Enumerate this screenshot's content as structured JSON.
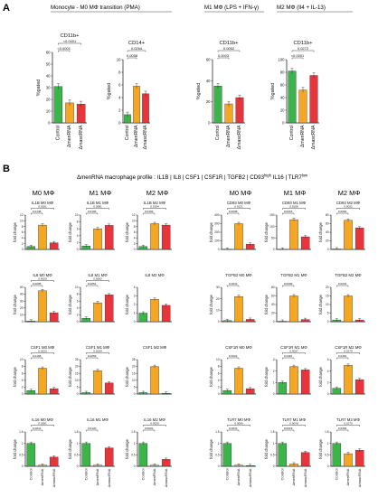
{
  "panel_labels": {
    "A": "A",
    "B": "B"
  },
  "section_a": {
    "group_titles": [
      "Monocyte - M0 MΦ transition (PMA)",
      "M1 MΦ (LPS + IFN-γ)",
      "M2 MΦ (Il4 + IL-13)"
    ]
  },
  "section_b": {
    "profile_title": "ΔmenRNA macrophage profile : IL1B | IL8 | CSF1 | CSF1R | TGFB2 | CD93",
    "profile_high_sup": "high",
    "profile_title_2": " IL16 | TLR7",
    "profile_low_sup": "low",
    "column_titles": [
      "M0 MΦ",
      "M1 MΦ",
      "M2 MΦ",
      "M0 MΦ",
      "M1 MΦ",
      "M2 MΦ"
    ]
  },
  "colors": {
    "control": "#3bb54a",
    "dmenRNA": "#f5a623",
    "dmascRNA": "#e8343b"
  },
  "chart_data": [
    {
      "type": "bar",
      "title": "CD11b+",
      "categories": [
        "Control",
        "ΔmenRNA",
        "ΔmascRNA"
      ],
      "values": [
        31,
        17,
        16
      ],
      "ylabel": "%gated",
      "ylim": [
        0,
        60
      ],
      "yticks": [
        0,
        10,
        20,
        30,
        40,
        50,
        60
      ],
      "brackets": [
        {
          "from": 0,
          "to": 1,
          "label": "<0.0001"
        },
        {
          "from": 0,
          "to": 2,
          "label": "<0.0001"
        }
      ]
    },
    {
      "type": "bar",
      "title": "CD14+",
      "categories": [
        "Control",
        "ΔmenRNA",
        "ΔmascRNA"
      ],
      "values": [
        1.3,
        5.8,
        4.6
      ],
      "ylabel": "%gated",
      "ylim": [
        0,
        10
      ],
      "yticks": [
        0,
        2,
        4,
        6,
        8,
        10
      ],
      "brackets": [
        {
          "from": 0,
          "to": 1,
          "label": "0.0058"
        },
        {
          "from": 0,
          "to": 2,
          "label": "0.0264"
        }
      ]
    },
    {
      "type": "bar",
      "title": "CD11b+",
      "categories": [
        "Control",
        "ΔmenRNA",
        "ΔmascRNA"
      ],
      "values": [
        35,
        18,
        24
      ],
      "ylabel": "%gated",
      "ylim": [
        0,
        60
      ],
      "yticks": [
        0,
        20,
        40,
        60
      ],
      "brackets": [
        {
          "from": 0,
          "to": 1,
          "label": "0.0003"
        },
        {
          "from": 0,
          "to": 2,
          "label": "0.0052"
        }
      ]
    },
    {
      "type": "bar",
      "title": "CD11b+",
      "categories": [
        "Control",
        "ΔmenRNA",
        "ΔmascRNA"
      ],
      "values": [
        82,
        52,
        75
      ],
      "ylabel": "%gated",
      "ylim": [
        0,
        100
      ],
      "yticks": [
        0,
        20,
        40,
        60,
        80,
        100
      ],
      "brackets": [
        {
          "from": 0,
          "to": 1,
          "label": "<0.0001"
        },
        {
          "from": 0,
          "to": 2,
          "label": "0.0272"
        }
      ]
    },
    {
      "type": "bar",
      "title": "IL1B M0 MΦ",
      "categories": [
        "Control",
        "ΔmenRNA",
        "ΔmascRNA"
      ],
      "values": [
        1,
        8.5,
        2.3
      ],
      "ylabel": "fold change",
      "ylim": [
        0,
        12
      ],
      "yticks": [
        0,
        2,
        4,
        6,
        8,
        10,
        12
      ],
      "brackets": [
        {
          "from": 0,
          "to": 1,
          "label": "0.0148"
        },
        {
          "from": 0,
          "to": 2,
          "label": "0.0261"
        }
      ]
    },
    {
      "type": "bar",
      "title": "IL1B M1 MΦ",
      "categories": [
        "Control",
        "ΔmenRNA",
        "ΔmascRNA"
      ],
      "values": [
        1,
        6,
        7
      ],
      "ylabel": "fold change",
      "ylim": [
        0,
        10
      ],
      "yticks": [
        0,
        2,
        4,
        6,
        8,
        10
      ],
      "brackets": [
        {
          "from": 0,
          "to": 1,
          "label": "0.0196"
        },
        {
          "from": 0,
          "to": 2,
          "label": "0.0081"
        }
      ]
    },
    {
      "type": "bar",
      "title": "IL1B M2 MΦ",
      "categories": [
        "Control",
        "ΔmenRNA",
        "ΔmascRNA"
      ],
      "values": [
        1,
        9,
        8.5
      ],
      "ylabel": "fold change",
      "ylim": [
        0,
        12
      ],
      "yticks": [
        0,
        2,
        4,
        6,
        8,
        10,
        12
      ],
      "brackets": [
        {
          "from": 0,
          "to": 1,
          "label": "0.0162"
        },
        {
          "from": 0,
          "to": 2,
          "label": "0.0154"
        }
      ]
    },
    {
      "type": "bar",
      "title": "CD93 M0 MΦ",
      "categories": [
        "Control",
        "ΔmenRNA",
        "ΔmascRNA"
      ],
      "values": [
        1,
        300,
        60
      ],
      "ylabel": "fold change",
      "ylim": [
        0,
        400
      ],
      "yticks": [
        0,
        100,
        200,
        300,
        400
      ],
      "brackets": [
        {
          "from": 0,
          "to": 1,
          "label": "0.0038"
        },
        {
          "from": 0,
          "to": 2,
          "label": "0.0121"
        }
      ]
    },
    {
      "type": "bar",
      "title": "CD93 M1 MΦ",
      "categories": [
        "Control",
        "ΔmenRNA",
        "ΔmascRNA"
      ],
      "values": [
        1,
        130,
        55
      ],
      "ylabel": "fold change",
      "ylim": [
        0,
        150
      ],
      "yticks": [
        0,
        50,
        100,
        150
      ],
      "brackets": [
        {
          "from": 0,
          "to": 1,
          "label": "0.0015"
        },
        {
          "from": 0,
          "to": 2,
          "label": "0.0106"
        }
      ]
    },
    {
      "type": "bar",
      "title": "CD93 M2 MΦ",
      "categories": [
        "Control",
        "ΔmenRNA",
        "ΔmascRNA"
      ],
      "values": [
        1,
        68,
        50
      ],
      "ylabel": "fold change",
      "ylim": [
        0,
        80
      ],
      "yticks": [
        0,
        20,
        40,
        60,
        80
      ],
      "brackets": [
        {
          "from": 0,
          "to": 1,
          "label": "0.0054"
        },
        {
          "from": 0,
          "to": 2,
          "label": "0.0032"
        }
      ]
    },
    {
      "type": "bar",
      "title": "IL8 M0 MΦ",
      "categories": [
        "Control",
        "ΔmenRNA",
        "ΔmascRNA"
      ],
      "values": [
        1,
        45,
        13
      ],
      "ylabel": "fold change",
      "ylim": [
        0,
        50
      ],
      "yticks": [
        0,
        10,
        20,
        30,
        40,
        50
      ],
      "brackets": [
        {
          "from": 0,
          "to": 1,
          "label": "0.0005"
        },
        {
          "from": 0,
          "to": 2,
          "label": "0.0020"
        }
      ]
    },
    {
      "type": "bar",
      "title": "IL8 M1 MΦ",
      "categories": [
        "Control",
        "ΔmenRNA",
        "ΔmascRNA"
      ],
      "values": [
        1,
        5.5,
        7.8
      ],
      "ylabel": "fold change",
      "ylim": [
        0,
        10
      ],
      "yticks": [
        0,
        2,
        4,
        6,
        8,
        10
      ],
      "brackets": [
        {
          "from": 0,
          "to": 1,
          "label": "0.0051"
        },
        {
          "from": 0,
          "to": 2,
          "label": "0.0062"
        }
      ]
    },
    {
      "type": "bar",
      "title": "IL8 M2 MΦ",
      "categories": [
        "Control",
        "ΔmenRNA",
        "ΔmascRNA"
      ],
      "values": [
        1,
        2.6,
        1.9
      ],
      "ylabel": "fold change",
      "ylim": [
        0,
        4
      ],
      "yticks": [
        0,
        1,
        2,
        3,
        4
      ],
      "brackets": []
    },
    {
      "type": "bar",
      "title": "TGFB2 M0 MΦ",
      "categories": [
        "Control",
        "ΔmenRNA",
        "ΔmascRNA"
      ],
      "values": [
        1,
        22,
        2
      ],
      "ylabel": "fold change",
      "ylim": [
        0,
        30
      ],
      "yticks": [
        0,
        10,
        20,
        30
      ],
      "brackets": [
        {
          "from": 0,
          "to": 1,
          "label": "0.0011"
        }
      ]
    },
    {
      "type": "bar",
      "title": "TGFB2 M1 MΦ",
      "categories": [
        "Control",
        "ΔmenRNA",
        "ΔmascRNA"
      ],
      "values": [
        1,
        60,
        5
      ],
      "ylabel": "fold change",
      "ylim": [
        0,
        80
      ],
      "yticks": [
        0,
        20,
        40,
        60,
        80
      ],
      "brackets": [
        {
          "from": 0,
          "to": 1,
          "label": "0.0009"
        }
      ]
    },
    {
      "type": "bar",
      "title": "TGFB2 M2 MΦ",
      "categories": [
        "Control",
        "ΔmenRNA",
        "ΔmascRNA"
      ],
      "values": [
        1,
        15,
        1
      ],
      "ylabel": "fold change",
      "ylim": [
        0,
        20
      ],
      "yticks": [
        0,
        5,
        10,
        15,
        20
      ],
      "brackets": [
        {
          "from": 0,
          "to": 1,
          "label": "0.0231"
        }
      ]
    },
    {
      "type": "bar",
      "title": "CSF1 M0 MΦ",
      "categories": [
        "Control",
        "ΔmenRNA",
        "ΔmascRNA"
      ],
      "values": [
        1,
        7.5,
        1.5
      ],
      "ylabel": "fold change",
      "ylim": [
        0,
        10
      ],
      "yticks": [
        0,
        2,
        4,
        6,
        8,
        10
      ],
      "brackets": [
        {
          "from": 0,
          "to": 1,
          "label": "0.0108"
        },
        {
          "from": 0,
          "to": 2,
          "label": "0.0123"
        }
      ]
    },
    {
      "type": "bar",
      "title": "CSF1 M1 MΦ",
      "categories": [
        "Control",
        "ΔmenRNA",
        "ΔmascRNA"
      ],
      "values": [
        1,
        17,
        8
      ],
      "ylabel": "fold change",
      "ylim": [
        0,
        25
      ],
      "yticks": [
        0,
        5,
        10,
        15,
        20,
        25
      ],
      "brackets": [
        {
          "from": 0,
          "to": 1,
          "label": "0.0059"
        },
        {
          "from": 0,
          "to": 2,
          "label": "0.0194"
        }
      ]
    },
    {
      "type": "bar",
      "title": "CSF1 M2 MΦ",
      "categories": [
        "Control",
        "ΔmenRNA",
        "ΔmascRNA"
      ],
      "values": [
        1,
        20,
        0.5
      ],
      "ylabel": "fold change",
      "ylim": [
        0,
        25
      ],
      "yticks": [
        0,
        5,
        10,
        15,
        20,
        25
      ],
      "brackets": []
    },
    {
      "type": "bar",
      "title": "CSF1R M0 MΦ",
      "categories": [
        "Control",
        "ΔmenRNA",
        "ΔmascRNA"
      ],
      "values": [
        1,
        7.5,
        1.5
      ],
      "ylabel": "fold change",
      "ylim": [
        0,
        10
      ],
      "yticks": [
        0,
        2,
        4,
        6,
        8,
        10
      ],
      "brackets": [
        {
          "from": 0,
          "to": 1,
          "label": "0.0022"
        }
      ]
    },
    {
      "type": "bar",
      "title": "CSF1R M1 MΦ",
      "categories": [
        "Control",
        "ΔmenRNA",
        "ΔmascRNA"
      ],
      "values": [
        1,
        2.4,
        2.1
      ],
      "ylabel": "fold change",
      "ylim": [
        0,
        3
      ],
      "yticks": [
        0,
        1,
        2,
        3
      ],
      "brackets": [
        {
          "from": 0,
          "to": 1,
          "label": "0.0115"
        },
        {
          "from": 0,
          "to": 2,
          "label": "0.0037"
        }
      ]
    },
    {
      "type": "bar",
      "title": "CSF1R M2 MΦ",
      "categories": [
        "Control",
        "ΔmenRNA",
        "ΔmascRNA"
      ],
      "values": [
        1,
        5,
        2.5
      ],
      "ylabel": "fold change",
      "ylim": [
        0,
        6
      ],
      "yticks": [
        0,
        2,
        4,
        6
      ],
      "brackets": [
        {
          "from": 0,
          "to": 1,
          "label": "0.0451"
        },
        {
          "from": 0,
          "to": 2,
          "label": "0.0170"
        }
      ]
    },
    {
      "type": "bar",
      "title": "IL16 M0 MΦ",
      "categories": [
        "Control",
        "ΔmenRNA",
        "ΔmascRNA"
      ],
      "values": [
        1,
        0.05,
        0.4
      ],
      "ylabel": "fold change",
      "ylim": [
        0,
        1.5
      ],
      "yticks": [
        0,
        0.5,
        1.0,
        1.5
      ],
      "brackets": [
        {
          "from": 0,
          "to": 1,
          "label": "0.0211"
        },
        {
          "from": 0,
          "to": 2,
          "label": "0.0281"
        }
      ]
    },
    {
      "type": "bar",
      "title": "IL16 M1 MΦ",
      "categories": [
        "Control",
        "ΔmenRNA",
        "ΔmascRNA"
      ],
      "values": [
        1,
        0.05,
        0.8
      ],
      "ylabel": "fold change",
      "ylim": [
        0,
        1.5
      ],
      "yticks": [
        0,
        0.5,
        1.0,
        1.5
      ],
      "brackets": [
        {
          "from": 0,
          "to": 1,
          "label": "0.0120"
        }
      ]
    },
    {
      "type": "bar",
      "title": "IL16 M2 MΦ",
      "categories": [
        "Control",
        "ΔmenRNA",
        "ΔmascRNA"
      ],
      "values": [
        1,
        0.05,
        0.3
      ],
      "ylabel": "fold change",
      "ylim": [
        0,
        1.5
      ],
      "yticks": [
        0,
        0.5,
        1.0,
        1.5
      ],
      "brackets": [
        {
          "from": 0,
          "to": 1,
          "label": "0.0001"
        },
        {
          "from": 0,
          "to": 2,
          "label": "0.0020"
        }
      ]
    },
    {
      "type": "bar",
      "title": "TLR7 M0 MΦ",
      "categories": [
        "Control",
        "ΔmenRNA",
        "ΔmascRNA"
      ],
      "values": [
        1,
        0.05,
        0.03
      ],
      "ylabel": "fold change",
      "ylim": [
        0,
        1.5
      ],
      "yticks": [
        0,
        0.5,
        1.0,
        1.5
      ],
      "brackets": [
        {
          "from": 0,
          "to": 1,
          "label": "0.0011"
        },
        {
          "from": 0,
          "to": 2,
          "label": "0.0006"
        }
      ]
    },
    {
      "type": "bar",
      "title": "TLR7 M1 MΦ",
      "categories": [
        "Control",
        "ΔmenRNA",
        "ΔmascRNA"
      ],
      "values": [
        1,
        0.1,
        0.6
      ],
      "ylabel": "fold change",
      "ylim": [
        0,
        1.5
      ],
      "yticks": [
        0,
        0.5,
        1.0,
        1.5
      ],
      "brackets": [
        {
          "from": 0,
          "to": 1,
          "label": "0.0019"
        },
        {
          "from": 0,
          "to": 2,
          "label": "0.0078"
        }
      ]
    },
    {
      "type": "bar",
      "title": "TLR7 M2 MΦ",
      "categories": [
        "Control",
        "ΔmenRNA",
        "ΔmascRNA"
      ],
      "values": [
        1,
        0.55,
        0.7
      ],
      "ylabel": "fold change",
      "ylim": [
        0,
        1.5
      ],
      "yticks": [
        0,
        0.5,
        1.0,
        1.5
      ],
      "brackets": [
        {
          "from": 0,
          "to": 1,
          "label": "0.0494"
        },
        {
          "from": 0,
          "to": 2,
          "label": "0.0170"
        }
      ]
    }
  ]
}
